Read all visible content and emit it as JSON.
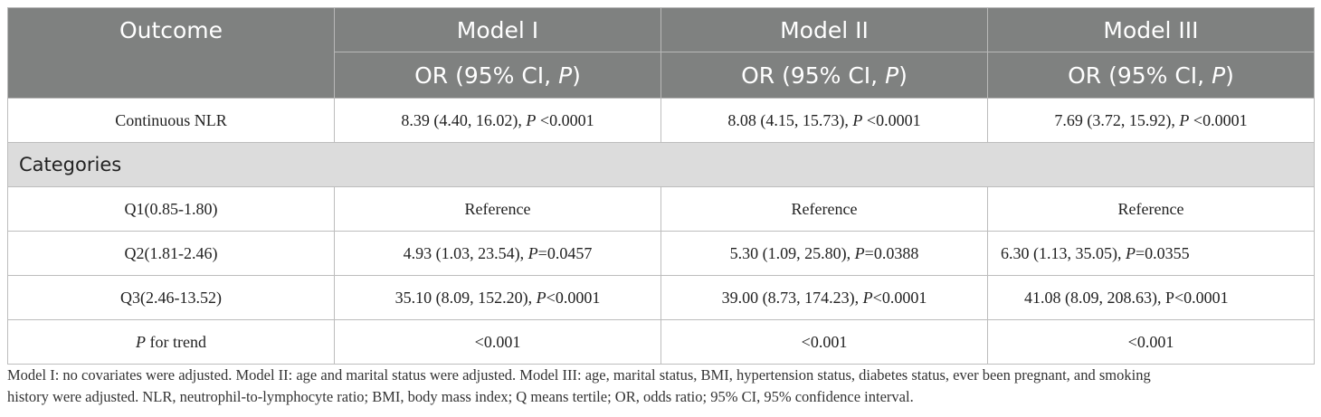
{
  "header": {
    "outcome": "Outcome",
    "models": [
      "Model I",
      "Model II",
      "Model III"
    ],
    "sub_label_pre": "OR (95% CI, ",
    "sub_label_p": "P",
    "sub_label_post": ")"
  },
  "rows": {
    "continuous": {
      "label": "Continuous NLR",
      "values": [
        {
          "pre": "8.39 (4.40, 16.02), ",
          "p": "P",
          "post": " <0.0001"
        },
        {
          "pre": "8.08 (4.15, 15.73), ",
          "p": "P",
          "post": " <0.0001"
        },
        {
          "pre": "7.69 (3.72, 15.92), ",
          "p": "P",
          "post": " <0.0001"
        }
      ]
    },
    "categories_label": "Categories",
    "q1": {
      "label": "Q1(0.85-1.80)",
      "values": [
        "Reference",
        "Reference",
        "Reference"
      ]
    },
    "q2": {
      "label": "Q2(1.81-2.46)",
      "values": [
        {
          "pre": "4.93 (1.03, 23.54), ",
          "p": "P",
          "post": "=0.0457"
        },
        {
          "pre": "5.30 (1.09, 25.80), ",
          "p": "P",
          "post": "=0.0388"
        },
        {
          "pre": "6.30 (1.13, 35.05), ",
          "p": "P",
          "post": "=0.0355"
        }
      ]
    },
    "q3": {
      "label": "Q3(2.46-13.52)",
      "values": [
        {
          "pre": "35.10 (8.09, 152.20), ",
          "p": "P",
          "post": "<0.0001"
        },
        {
          "pre": "39.00 (8.73, 174.23), ",
          "p": "P",
          "post": "<0.0001"
        },
        {
          "pre": "41.08 (8.09, 208.63), P<0.0001"
        }
      ]
    },
    "trend": {
      "label_p": "P",
      "label_rest": " for trend",
      "values": [
        "<0.001",
        "<0.001",
        "<0.001"
      ]
    }
  },
  "footnote": {
    "line1": "Model I: no covariates were adjusted. Model II: age and marital status were adjusted. Model III: age, marital status, BMI, hypertension status, diabetes status, ever been pregnant, and smoking",
    "line2": "history were adjusted. NLR, neutrophil-to-lymphocyte ratio; BMI, body mass index; Q means tertile; OR, odds ratio; 95% CI, 95% confidence interval."
  }
}
